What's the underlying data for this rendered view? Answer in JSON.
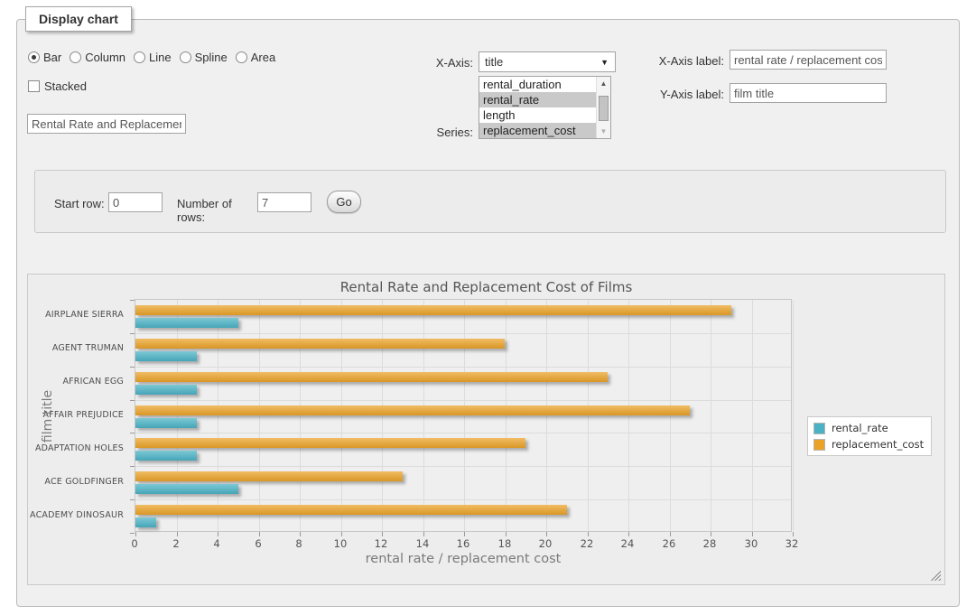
{
  "fieldset": {
    "legend": "Display chart"
  },
  "chart_types": [
    {
      "label": "Bar",
      "selected": true
    },
    {
      "label": "Column",
      "selected": false
    },
    {
      "label": "Line",
      "selected": false
    },
    {
      "label": "Spline",
      "selected": false
    },
    {
      "label": "Area",
      "selected": false
    }
  ],
  "stacked": {
    "label": "Stacked",
    "checked": false
  },
  "title_input": {
    "value": "Rental Rate and Replacement Cost of Films"
  },
  "x_axis": {
    "label": "X-Axis:",
    "selected": "title"
  },
  "series_select": {
    "label": "Series:",
    "options": [
      {
        "label": "rental_duration",
        "selected": false
      },
      {
        "label": "rental_rate",
        "selected": true
      },
      {
        "label": "length",
        "selected": false
      },
      {
        "label": "replacement_cost",
        "selected": true
      }
    ]
  },
  "x_axis_label": {
    "label": "X-Axis label:",
    "value": "rental rate / replacement cost"
  },
  "y_axis_label": {
    "label": "Y-Axis label:",
    "value": "film title"
  },
  "row_controls": {
    "start_row_label": "Start row:",
    "start_row_value": "0",
    "num_rows_label": "Number of rows:",
    "num_rows_value": "7",
    "go_label": "Go"
  },
  "chart_data": {
    "type": "bar",
    "orientation": "horizontal",
    "title": "Rental Rate and Replacement Cost of Films",
    "xlabel": "rental rate / replacement cost",
    "ylabel": "film title",
    "categories": [
      "AIRPLANE SIERRA",
      "AGENT TRUMAN",
      "AFRICAN EGG",
      "AFFAIR PREJUDICE",
      "ADAPTATION HOLES",
      "ACE GOLDFINGER",
      "ACADEMY DINOSAUR"
    ],
    "series": [
      {
        "name": "rental_rate",
        "color": "#4bb2c5",
        "values": [
          4.99,
          2.99,
          2.99,
          2.99,
          2.99,
          4.99,
          0.99
        ]
      },
      {
        "name": "replacement_cost",
        "color": "#eaa228",
        "values": [
          28.99,
          17.99,
          22.99,
          26.99,
          18.99,
          12.99,
          20.99
        ]
      }
    ],
    "xlim": [
      0,
      32
    ],
    "xticks": [
      0,
      2,
      4,
      6,
      8,
      10,
      12,
      14,
      16,
      18,
      20,
      22,
      24,
      26,
      28,
      30,
      32
    ],
    "grid": true,
    "legend_position": "right"
  }
}
